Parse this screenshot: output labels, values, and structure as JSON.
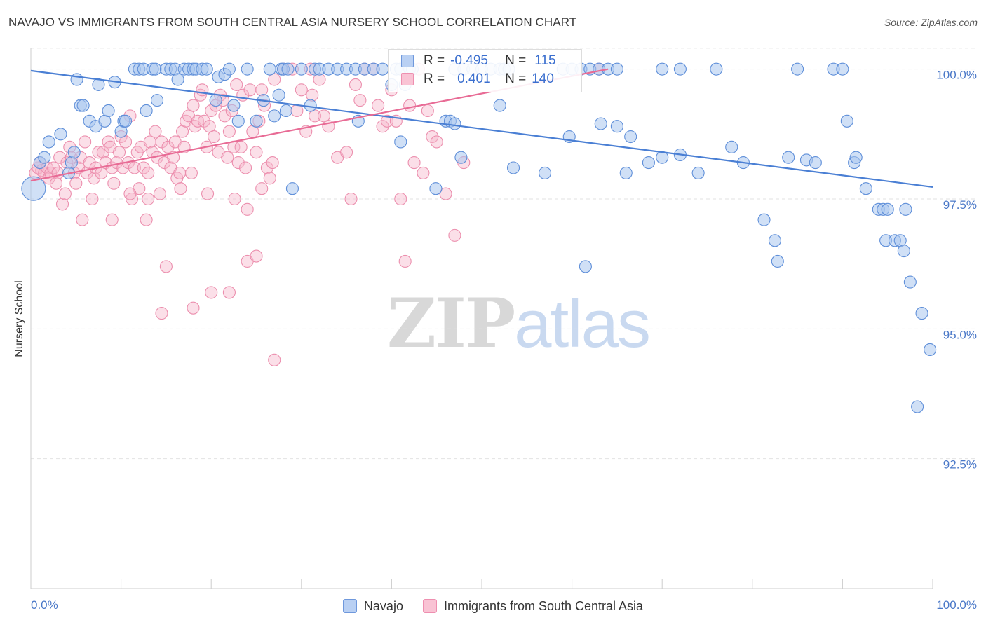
{
  "title": "NAVAJO VS IMMIGRANTS FROM SOUTH CENTRAL ASIA NURSERY SCHOOL CORRELATION CHART",
  "source": "Source: ZipAtlas.com",
  "watermark": {
    "zip": "ZIP",
    "atlas": "atlas"
  },
  "legend": {
    "navajo": {
      "r_label": "R =",
      "r_value": "-0.495",
      "n_label": "N =",
      "n_value": "115"
    },
    "immigrants": {
      "r_label": "R =",
      "r_value": "0.401",
      "n_label": "N =",
      "n_value": "140"
    }
  },
  "bottom_legend": {
    "navajo": "Navajo",
    "immigrants": "Immigrants from South Central Asia"
  },
  "colors": {
    "navajo": "#4a7fd4",
    "navajo_fill": "#aac6ef",
    "immigrants": "#e86b95",
    "immigrants_fill": "#f7b9cd",
    "tick_text": "#4a78c8"
  },
  "chart_data": {
    "type": "scatter",
    "title": "NAVAJO VS IMMIGRANTS FROM SOUTH CENTRAL ASIA NURSERY SCHOOL CORRELATION CHART",
    "xlabel": "",
    "ylabel": "Nursery School",
    "xlim": [
      0,
      100
    ],
    "ylim": [
      90.0,
      100.4
    ],
    "x_tick_labels": [
      "0.0%",
      "100.0%"
    ],
    "y_ticks": [
      92.5,
      95.0,
      97.5,
      100.0
    ],
    "y_tick_labels": [
      "92.5%",
      "95.0%",
      "97.5%",
      "100.0%"
    ],
    "grid": "horizontal dashed",
    "series": [
      {
        "name": "Navajo",
        "r": -0.495,
        "n": 115,
        "trend": {
          "x": [
            0,
            100
          ],
          "y": [
            99.97,
            97.73
          ]
        },
        "points": [
          [
            0.3,
            97.7
          ],
          [
            1.0,
            98.2
          ],
          [
            1.5,
            98.3
          ],
          [
            2.0,
            98.6
          ],
          [
            3.3,
            98.75
          ],
          [
            4.5,
            98.2
          ],
          [
            4.8,
            98.4
          ],
          [
            4.2,
            98.0
          ],
          [
            5.1,
            99.8
          ],
          [
            5.5,
            99.3
          ],
          [
            5.8,
            99.3
          ],
          [
            6.5,
            99.0
          ],
          [
            7.2,
            98.9
          ],
          [
            7.5,
            99.7
          ],
          [
            8.2,
            99.0
          ],
          [
            8.6,
            99.2
          ],
          [
            9.3,
            99.75
          ],
          [
            10.0,
            98.8
          ],
          [
            10.3,
            99.0
          ],
          [
            10.5,
            99.0
          ],
          [
            11.5,
            100.0
          ],
          [
            12.0,
            100.0
          ],
          [
            12.5,
            100.0
          ],
          [
            12.8,
            99.2
          ],
          [
            13.5,
            100.0
          ],
          [
            13.8,
            100.0
          ],
          [
            14.0,
            99.4
          ],
          [
            15.0,
            100.0
          ],
          [
            15.5,
            100.0
          ],
          [
            16.0,
            100.0
          ],
          [
            16.3,
            99.8
          ],
          [
            17.0,
            100.0
          ],
          [
            17.5,
            100.0
          ],
          [
            18.0,
            100.0
          ],
          [
            18.3,
            100.0
          ],
          [
            19.0,
            100.0
          ],
          [
            19.5,
            100.0
          ],
          [
            20.5,
            99.4
          ],
          [
            20.8,
            99.85
          ],
          [
            21.5,
            99.9
          ],
          [
            22.0,
            100.0
          ],
          [
            22.5,
            99.3
          ],
          [
            23.0,
            99.0
          ],
          [
            24.0,
            100.0
          ],
          [
            25.0,
            99.0
          ],
          [
            25.8,
            99.4
          ],
          [
            26.5,
            100.0
          ],
          [
            27.0,
            99.1
          ],
          [
            27.5,
            99.5
          ],
          [
            27.8,
            100.0
          ],
          [
            28.0,
            100.0
          ],
          [
            28.5,
            100.0
          ],
          [
            28.3,
            99.2
          ],
          [
            29.0,
            97.7
          ],
          [
            30.0,
            100.0
          ],
          [
            31.0,
            99.3
          ],
          [
            31.5,
            100.0
          ],
          [
            32.0,
            100.0
          ],
          [
            33.0,
            100.0
          ],
          [
            34.0,
            100.0
          ],
          [
            35.0,
            100.0
          ],
          [
            36.0,
            100.0
          ],
          [
            36.3,
            99.0
          ],
          [
            37.0,
            100.0
          ],
          [
            38.0,
            100.0
          ],
          [
            39.0,
            100.0
          ],
          [
            40.0,
            99.7
          ],
          [
            40.5,
            100.0
          ],
          [
            41.0,
            100.0
          ],
          [
            41.5,
            99.7
          ],
          [
            42.0,
            100.0
          ],
          [
            42.3,
            100.0
          ],
          [
            47.0,
            100.0
          ],
          [
            48.0,
            100.0
          ],
          [
            49.0,
            100.0
          ],
          [
            50.0,
            100.0
          ],
          [
            51.0,
            100.0
          ],
          [
            52.0,
            100.0
          ],
          [
            52.5,
            100.0
          ],
          [
            53.0,
            100.0
          ],
          [
            59.0,
            100.0
          ],
          [
            60.0,
            100.0
          ],
          [
            61.0,
            100.0
          ],
          [
            62.0,
            100.0
          ],
          [
            63.0,
            100.0
          ],
          [
            64.0,
            100.0
          ],
          [
            65.0,
            100.0
          ],
          [
            70.0,
            100.0
          ],
          [
            72.0,
            100.0
          ],
          [
            76.0,
            100.0
          ],
          [
            85.0,
            100.0
          ],
          [
            89.0,
            100.0
          ],
          [
            90.0,
            100.0
          ],
          [
            41.0,
            98.6
          ],
          [
            47.7,
            98.3
          ],
          [
            44.9,
            97.7
          ],
          [
            46.0,
            99.0
          ],
          [
            46.5,
            99.0
          ],
          [
            47.0,
            98.95
          ],
          [
            59.7,
            98.7
          ],
          [
            63.2,
            98.95
          ],
          [
            65.0,
            98.9
          ],
          [
            66.5,
            98.7
          ],
          [
            70.0,
            98.3
          ],
          [
            72.0,
            98.35
          ],
          [
            74.0,
            98.0
          ],
          [
            77.7,
            98.5
          ],
          [
            79.0,
            98.2
          ],
          [
            81.3,
            97.1
          ],
          [
            82.5,
            96.7
          ],
          [
            82.8,
            96.3
          ],
          [
            84.0,
            98.3
          ],
          [
            86.0,
            98.25
          ],
          [
            87.0,
            98.2
          ],
          [
            90.5,
            99.0
          ],
          [
            91.3,
            98.2
          ],
          [
            91.5,
            98.3
          ],
          [
            92.6,
            97.7
          ],
          [
            94.0,
            97.3
          ],
          [
            94.5,
            97.3
          ],
          [
            94.8,
            96.7
          ],
          [
            95.0,
            97.3
          ],
          [
            95.8,
            96.7
          ],
          [
            96.4,
            96.7
          ],
          [
            96.8,
            96.5
          ],
          [
            97.0,
            97.3
          ],
          [
            97.5,
            95.9
          ],
          [
            98.3,
            93.5
          ],
          [
            98.8,
            95.3
          ],
          [
            99.7,
            94.6
          ],
          [
            68.5,
            98.2
          ],
          [
            66.0,
            98.0
          ],
          [
            61.5,
            96.2
          ],
          [
            57.0,
            98.0
          ],
          [
            53.5,
            98.1
          ],
          [
            52.0,
            99.3
          ]
        ]
      },
      {
        "name": "Immigrants from South Central Asia",
        "r": 0.401,
        "n": 140,
        "trend": {
          "x": [
            0,
            64
          ],
          "y": [
            97.85,
            100.0
          ]
        },
        "points": [
          [
            0.5,
            98.0
          ],
          [
            0.8,
            98.1
          ],
          [
            1.0,
            98.2
          ],
          [
            1.2,
            98.05
          ],
          [
            1.5,
            98.0
          ],
          [
            1.8,
            98.1
          ],
          [
            2.0,
            97.9
          ],
          [
            2.2,
            98.0
          ],
          [
            2.5,
            98.1
          ],
          [
            2.8,
            97.8
          ],
          [
            3.0,
            98.0
          ],
          [
            3.2,
            98.3
          ],
          [
            3.5,
            97.4
          ],
          [
            3.8,
            97.6
          ],
          [
            4.0,
            98.2
          ],
          [
            4.3,
            98.5
          ],
          [
            4.5,
            98.3
          ],
          [
            4.8,
            98.0
          ],
          [
            5.0,
            97.8
          ],
          [
            5.3,
            98.1
          ],
          [
            5.5,
            98.3
          ],
          [
            6.0,
            98.6
          ],
          [
            6.2,
            98.0
          ],
          [
            6.5,
            98.2
          ],
          [
            6.8,
            97.5
          ],
          [
            7.0,
            97.9
          ],
          [
            7.2,
            98.1
          ],
          [
            7.5,
            98.4
          ],
          [
            7.8,
            98.0
          ],
          [
            8.0,
            98.4
          ],
          [
            8.3,
            98.2
          ],
          [
            8.6,
            98.6
          ],
          [
            8.8,
            98.5
          ],
          [
            9.0,
            98.1
          ],
          [
            9.2,
            97.8
          ],
          [
            9.5,
            98.2
          ],
          [
            9.8,
            98.4
          ],
          [
            10.0,
            98.7
          ],
          [
            10.2,
            98.1
          ],
          [
            10.5,
            98.6
          ],
          [
            10.8,
            98.2
          ],
          [
            11.0,
            99.1
          ],
          [
            11.2,
            97.5
          ],
          [
            11.5,
            98.1
          ],
          [
            11.8,
            98.4
          ],
          [
            12.0,
            97.7
          ],
          [
            12.2,
            98.5
          ],
          [
            12.5,
            98.1
          ],
          [
            12.8,
            97.1
          ],
          [
            13.0,
            98.0
          ],
          [
            13.2,
            98.6
          ],
          [
            13.5,
            98.4
          ],
          [
            13.8,
            98.8
          ],
          [
            14.0,
            98.3
          ],
          [
            14.3,
            97.6
          ],
          [
            14.5,
            98.6
          ],
          [
            14.8,
            98.2
          ],
          [
            15.0,
            96.2
          ],
          [
            15.2,
            98.5
          ],
          [
            15.5,
            98.1
          ],
          [
            15.8,
            98.3
          ],
          [
            16.0,
            98.6
          ],
          [
            16.2,
            97.9
          ],
          [
            16.5,
            98.0
          ],
          [
            16.8,
            98.8
          ],
          [
            17.0,
            98.5
          ],
          [
            17.2,
            99.0
          ],
          [
            17.5,
            99.1
          ],
          [
            17.8,
            98.0
          ],
          [
            18.0,
            99.3
          ],
          [
            18.2,
            98.9
          ],
          [
            18.5,
            99.0
          ],
          [
            18.8,
            99.5
          ],
          [
            19.0,
            99.6
          ],
          [
            19.2,
            99.0
          ],
          [
            19.5,
            98.5
          ],
          [
            19.8,
            98.9
          ],
          [
            20.0,
            99.2
          ],
          [
            20.3,
            98.7
          ],
          [
            20.5,
            99.3
          ],
          [
            20.8,
            98.4
          ],
          [
            21.0,
            99.5
          ],
          [
            21.3,
            99.4
          ],
          [
            21.5,
            99.1
          ],
          [
            21.8,
            98.3
          ],
          [
            22.0,
            98.8
          ],
          [
            22.3,
            99.2
          ],
          [
            22.5,
            98.5
          ],
          [
            22.8,
            99.7
          ],
          [
            23.0,
            98.2
          ],
          [
            23.3,
            98.5
          ],
          [
            23.5,
            99.5
          ],
          [
            23.8,
            98.1
          ],
          [
            24.0,
            97.3
          ],
          [
            24.3,
            99.6
          ],
          [
            24.6,
            98.8
          ],
          [
            25.0,
            98.4
          ],
          [
            25.3,
            99.0
          ],
          [
            25.6,
            99.6
          ],
          [
            25.9,
            99.3
          ],
          [
            26.2,
            98.1
          ],
          [
            26.5,
            97.9
          ],
          [
            26.8,
            98.2
          ],
          [
            27.0,
            99.8
          ],
          [
            28.0,
            100.0
          ],
          [
            29.0,
            100.0
          ],
          [
            29.5,
            99.2
          ],
          [
            30.0,
            99.6
          ],
          [
            30.5,
            98.8
          ],
          [
            31.0,
            100.0
          ],
          [
            31.2,
            99.5
          ],
          [
            31.5,
            99.1
          ],
          [
            32.0,
            99.8
          ],
          [
            32.5,
            99.1
          ],
          [
            33.0,
            98.9
          ],
          [
            34.0,
            98.3
          ],
          [
            35.0,
            98.4
          ],
          [
            35.5,
            97.5
          ],
          [
            36.0,
            99.7
          ],
          [
            36.5,
            99.4
          ],
          [
            37.0,
            100.0
          ],
          [
            38.0,
            100.0
          ],
          [
            38.5,
            99.3
          ],
          [
            39.0,
            98.9
          ],
          [
            39.5,
            99.0
          ],
          [
            40.0,
            99.6
          ],
          [
            40.5,
            99.0
          ],
          [
            41.0,
            97.5
          ],
          [
            41.5,
            96.3
          ],
          [
            42.0,
            99.3
          ],
          [
            42.5,
            98.2
          ],
          [
            43.0,
            100.0
          ],
          [
            43.5,
            98.0
          ],
          [
            44.0,
            99.2
          ],
          [
            44.5,
            98.7
          ],
          [
            45.0,
            98.6
          ],
          [
            46.0,
            97.6
          ],
          [
            47.0,
            96.8
          ],
          [
            48.0,
            98.2
          ],
          [
            63.0,
            100.0
          ],
          [
            14.5,
            95.3
          ],
          [
            18.0,
            95.4
          ],
          [
            20.0,
            95.7
          ],
          [
            22.0,
            95.7
          ],
          [
            24.0,
            96.3
          ],
          [
            25.0,
            96.4
          ],
          [
            27.0,
            94.4
          ],
          [
            9.0,
            97.1
          ],
          [
            5.7,
            97.1
          ],
          [
            11.0,
            97.6
          ],
          [
            13.0,
            97.5
          ],
          [
            16.6,
            97.7
          ],
          [
            19.6,
            97.6
          ],
          [
            22.6,
            97.5
          ],
          [
            25.6,
            97.7
          ]
        ]
      }
    ]
  }
}
